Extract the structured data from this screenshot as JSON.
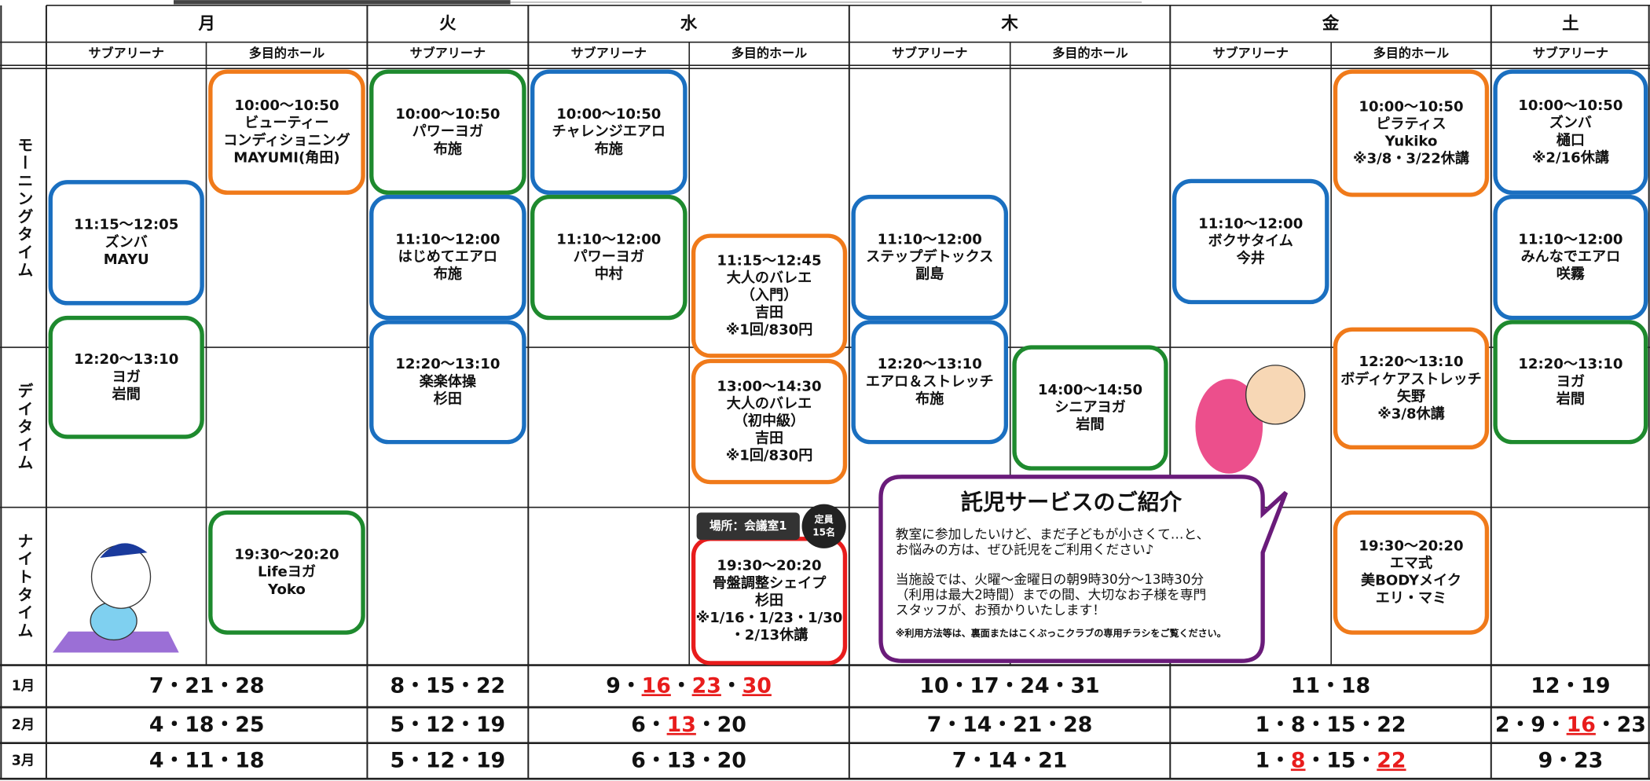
{
  "days": [
    {
      "name": "月",
      "subs": [
        "サブアリーナ",
        "多目的ホール"
      ]
    },
    {
      "name": "火",
      "subs": [
        "サブアリーナ"
      ]
    },
    {
      "name": "水",
      "subs": [
        "サブアリーナ",
        "多目的ホール"
      ]
    },
    {
      "name": "木",
      "subs": [
        "サブアリーナ",
        "多目的ホール"
      ]
    },
    {
      "name": "金",
      "subs": [
        "サブアリーナ",
        "多目的ホール"
      ]
    },
    {
      "name": "土",
      "subs": [
        "サブアリーナ"
      ]
    }
  ],
  "periods": [
    "モーニングタイム",
    "デイタイム",
    "ナイトタイム"
  ],
  "classes": [
    {
      "col": 0,
      "color": "#1a6fc0",
      "lines": [
        "11:15～12:05",
        "ズンバ",
        "MAYU"
      ]
    },
    {
      "col": 0,
      "color": "#1e8a2e",
      "lines": [
        "12:20～13:10",
        "ヨガ",
        "岩間"
      ]
    },
    {
      "col": 1,
      "color": "#f07a1a",
      "lines": [
        "10:00～10:50",
        "ビューティー",
        "コンディショニング",
        "MAYUMI(角田)"
      ]
    },
    {
      "col": 1,
      "color": "#1e8a2e",
      "lines": [
        "19:30～20:20",
        "Lifeヨガ",
        "Yoko"
      ]
    },
    {
      "col": 2,
      "color": "#1e8a2e",
      "lines": [
        "10:00～10:50",
        "パワーヨガ",
        "布施"
      ]
    },
    {
      "col": 2,
      "color": "#1a6fc0",
      "lines": [
        "11:10～12:00",
        "はじめてエアロ",
        "布施"
      ]
    },
    {
      "col": 2,
      "color": "#1a6fc0",
      "lines": [
        "12:20～13:10",
        "楽楽体操",
        "杉田"
      ]
    },
    {
      "col": 3,
      "color": "#1a6fc0",
      "lines": [
        "10:00～10:50",
        "チャレンジエアロ",
        "布施"
      ]
    },
    {
      "col": 3,
      "color": "#1e8a2e",
      "lines": [
        "11:10～12:00",
        "パワーヨガ",
        "中村"
      ]
    },
    {
      "col": 4,
      "color": "#f07a1a",
      "lines": [
        "11:15～12:45",
        "大人のバレエ",
        "（入門）",
        "吉田",
        "※1回/830円"
      ]
    },
    {
      "col": 4,
      "color": "#f07a1a",
      "lines": [
        "13:00～14:30",
        "大人のバレエ",
        "（初中級）",
        "吉田",
        "※1回/830円"
      ]
    },
    {
      "col": 4,
      "color": "#e81c1c",
      "lines": [
        "19:30～20:20",
        "骨盤調整シェイプ",
        "杉田",
        "※1/16・1/23・1/30",
        "・2/13休講"
      ]
    },
    {
      "col": 5,
      "color": "#1a6fc0",
      "lines": [
        "11:10～12:00",
        "ステップデトックス",
        "副島"
      ]
    },
    {
      "col": 5,
      "color": "#1a6fc0",
      "lines": [
        "12:20～13:10",
        "エアロ＆ストレッチ",
        "布施"
      ]
    },
    {
      "col": 6,
      "color": "#1e8a2e",
      "lines": [
        "14:00～14:50",
        "シニアヨガ",
        "岩間"
      ]
    },
    {
      "col": 7,
      "color": "#1a6fc0",
      "lines": [
        "11:10～12:00",
        "ボクサタイム",
        "今井"
      ]
    },
    {
      "col": 8,
      "color": "#f07a1a",
      "lines": [
        "10:00～10:50",
        "ピラティス",
        "Yukiko",
        "※3/8・3/22休講"
      ]
    },
    {
      "col": 8,
      "color": "#f07a1a",
      "lines": [
        "12:20～13:10",
        "ボディケアストレッチ",
        "矢野",
        "※3/8休講"
      ]
    },
    {
      "col": 8,
      "color": "#f07a1a",
      "lines": [
        "19:30～20:20",
        "エマ式",
        "美BODYメイク",
        "エリ・マミ"
      ]
    },
    {
      "col": 9,
      "color": "#1a6fc0",
      "lines": [
        "10:00～10:50",
        "ズンバ",
        "樋口",
        "※2/16休講"
      ]
    },
    {
      "col": 9,
      "color": "#1a6fc0",
      "lines": [
        "11:10～12:00",
        "みんなでエアロ",
        "咲霧"
      ]
    },
    {
      "col": 9,
      "color": "#1e8a2e",
      "lines": [
        "12:20～13:10",
        "ヨガ",
        "岩間"
      ]
    }
  ],
  "venue_tag": "場所：会議室1",
  "capacity": [
    "定員",
    "15名"
  ],
  "separator": "・",
  "highlight_color": "#e81c1c",
  "months": [
    {
      "name": "1月",
      "cells": [
        [
          {
            "d": "7"
          },
          {
            "d": "21"
          },
          {
            "d": "28"
          }
        ],
        [
          {
            "d": "8"
          },
          {
            "d": "15"
          },
          {
            "d": "22"
          }
        ],
        [
          {
            "d": "9"
          },
          {
            "d": "16",
            "red": true
          },
          {
            "d": "23",
            "red": true
          },
          {
            "d": "30",
            "red": true
          }
        ],
        [
          {
            "d": "10"
          },
          {
            "d": "17"
          },
          {
            "d": "24"
          },
          {
            "d": "31"
          }
        ],
        [
          {
            "d": "11"
          },
          {
            "d": "18"
          }
        ],
        [
          {
            "d": "12"
          },
          {
            "d": "19"
          }
        ]
      ]
    },
    {
      "name": "2月",
      "cells": [
        [
          {
            "d": "4"
          },
          {
            "d": "18"
          },
          {
            "d": "25"
          }
        ],
        [
          {
            "d": "5"
          },
          {
            "d": "12"
          },
          {
            "d": "19"
          }
        ],
        [
          {
            "d": "6"
          },
          {
            "d": "13",
            "red": true
          },
          {
            "d": "20"
          }
        ],
        [
          {
            "d": "7"
          },
          {
            "d": "14"
          },
          {
            "d": "21"
          },
          {
            "d": "28"
          }
        ],
        [
          {
            "d": "1"
          },
          {
            "d": "8"
          },
          {
            "d": "15"
          },
          {
            "d": "22"
          }
        ],
        [
          {
            "d": "2"
          },
          {
            "d": "9"
          },
          {
            "d": "16",
            "red": true
          },
          {
            "d": "23"
          }
        ]
      ]
    },
    {
      "name": "3月",
      "cells": [
        [
          {
            "d": "4"
          },
          {
            "d": "11"
          },
          {
            "d": "18"
          }
        ],
        [
          {
            "d": "5"
          },
          {
            "d": "12"
          },
          {
            "d": "19"
          }
        ],
        [
          {
            "d": "6"
          },
          {
            "d": "13"
          },
          {
            "d": "20"
          }
        ],
        [
          {
            "d": "7"
          },
          {
            "d": "14"
          },
          {
            "d": "21"
          }
        ],
        [
          {
            "d": "1"
          },
          {
            "d": "8",
            "red": true
          },
          {
            "d": "15"
          },
          {
            "d": "22",
            "red": true
          }
        ],
        [
          {
            "d": "9"
          },
          {
            "d": "23"
          }
        ]
      ]
    }
  ],
  "notice": {
    "title": "託児サービスのご紹介",
    "paragraphs": [
      [
        "教室に参加したいけど、まだ子どもが小さくて…と、",
        "お悩みの方は、ぜひ託児をご利用ください♪"
      ],
      [
        "当施設では、火曜～金曜日の朝9時30分～13時30分",
        "（利用は最大2時間）までの間、大切なお子様を専門",
        "スタッフが、お預かりいたします！"
      ]
    ],
    "footnote": "※利用方法等は、裏面またはこくぶっこクラブの専用チラシをご覧ください。"
  }
}
